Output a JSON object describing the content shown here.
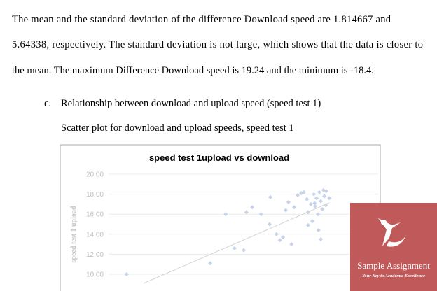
{
  "body": {
    "lines": [
      "The mean and the standard deviation of the difference Download speed are 1.814667 and",
      "5.64338, respectively. The standard deviation is not large, which shows that the data is closer to",
      "the mean. The maximum  Difference Download speed is 19.24 and the minimum  is -18.4."
    ],
    "list_item": {
      "marker": "c.",
      "text": "Relationship between download and upload speed (speed test 1)"
    },
    "caption": "Scatter plot for download and upload speeds, speed test 1"
  },
  "figure": {
    "type": "scatter",
    "title": "speed test 1upload vs download",
    "y_label": "speed test 1 upload",
    "ylim": [
      10,
      20
    ],
    "yticks": [
      {
        "value": 20,
        "label": "20.00"
      },
      {
        "value": 18,
        "label": "18.00"
      },
      {
        "value": 16,
        "label": "16.00"
      },
      {
        "value": 14,
        "label": "14.00"
      },
      {
        "value": 12,
        "label": "12.00"
      },
      {
        "value": 10,
        "label": "10.00"
      }
    ],
    "xlim": [
      0,
      70
    ],
    "color": "#c6d3e8",
    "x": [
      4.7,
      26.4,
      30.4,
      32.7,
      35.1,
      35.8,
      37.3,
      39.6,
      41.8,
      43.6,
      44.5,
      46.0,
      46.7,
      47.5,
      48.2,
      49.1,
      50.0,
      50.7,
      51.5,
      51.8,
      52.5,
      52.9,
      53.3,
      53.6,
      54.0,
      54.4,
      54.7,
      55.1,
      55.5,
      55.8,
      56.0,
      56.4,
      54.5,
      55.1,
      45.3,
      42.0,
      51.8,
      56.5,
      53.5,
      57.3
    ],
    "y": [
      10.0,
      11.1,
      16.0,
      12.6,
      12.4,
      16.2,
      16.7,
      16.0,
      15.0,
      14.0,
      13.4,
      16.4,
      17.2,
      13.0,
      16.7,
      17.9,
      18.1,
      18.2,
      17.5,
      16.2,
      17.0,
      15.3,
      18.0,
      16.8,
      17.6,
      16.0,
      18.2,
      17.3,
      16.5,
      18.4,
      17.8,
      16.9,
      14.4,
      13.5,
      13.7,
      17.7,
      14.9,
      18.3,
      17.1,
      17.6
    ]
  },
  "logo": {
    "name": "Sample Assignment",
    "tagline": "Your Key to Academic Excellence"
  }
}
